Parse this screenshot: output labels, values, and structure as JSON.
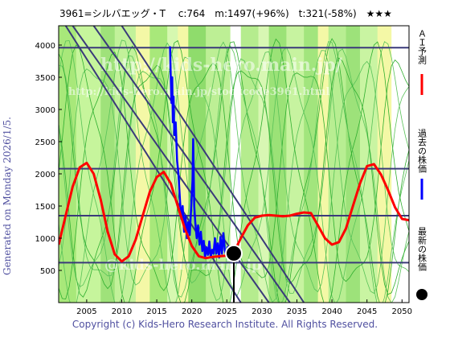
{
  "title": "3961=シルバエッグ・T　 c:764　m:1497(+96%)　t:321(-58%)　★★★",
  "side_label": "Generated on Monday 2026/1/5.",
  "footer": "Copyright (c) Kids-Hero Research Institute. All Rights Reserved.",
  "watermarks": [
    "http://kids-hero.main.jp/",
    "http://kids-hero.main.jp/stockcode3961.html",
    "@kids-hero.main.jp"
  ],
  "legend": [
    {
      "label": "ＡＩ予測",
      "color": "#ff0000",
      "marker": "line"
    },
    {
      "label": "過去の株価",
      "color": "#0000ff",
      "marker": "line"
    },
    {
      "label": "最新の株価",
      "color": "#000000",
      "marker": "dot"
    }
  ],
  "chart_data": {
    "type": "line",
    "xlim": [
      2001,
      2051
    ],
    "ylim": [
      0,
      4300
    ],
    "xticks": [
      2005,
      2010,
      2015,
      2020,
      2025,
      2030,
      2035,
      2040,
      2045,
      2050
    ],
    "yticks": [
      500,
      1000,
      1500,
      2000,
      2500,
      3000,
      3500,
      4000
    ],
    "grid": false,
    "legend_position": "right, vertical",
    "hlines": [
      3960,
      2080,
      1350,
      620
    ],
    "vline": 2026,
    "latest_price": {
      "x": 2026.0,
      "y": 764
    },
    "series": [
      {
        "name": "過去の株価",
        "color": "#0000ff",
        "points": [
          [
            2016.9,
            3980
          ],
          [
            2017.0,
            3500
          ],
          [
            2017.1,
            3100
          ],
          [
            2017.2,
            3500
          ],
          [
            2017.3,
            2800
          ],
          [
            2017.4,
            3200
          ],
          [
            2017.5,
            2600
          ],
          [
            2017.7,
            2800
          ],
          [
            2017.9,
            2200
          ],
          [
            2018.1,
            2000
          ],
          [
            2018.3,
            1600
          ],
          [
            2018.5,
            1300
          ],
          [
            2018.7,
            1500
          ],
          [
            2018.9,
            1100
          ],
          [
            2019.1,
            1350
          ],
          [
            2019.3,
            1000
          ],
          [
            2019.5,
            1250
          ],
          [
            2019.7,
            1050
          ],
          [
            2019.9,
            1450
          ],
          [
            2020.1,
            1900
          ],
          [
            2020.2,
            2540
          ],
          [
            2020.35,
            1500
          ],
          [
            2020.5,
            1250
          ],
          [
            2020.7,
            1000
          ],
          [
            2020.9,
            1200
          ],
          [
            2021.1,
            900
          ],
          [
            2021.3,
            1100
          ],
          [
            2021.5,
            800
          ],
          [
            2021.7,
            960
          ],
          [
            2021.9,
            700
          ],
          [
            2022.1,
            860
          ],
          [
            2022.3,
            740
          ],
          [
            2022.5,
            950
          ],
          [
            2022.7,
            700
          ],
          [
            2022.9,
            820
          ],
          [
            2023.1,
            760
          ],
          [
            2023.3,
            1000
          ],
          [
            2023.5,
            760
          ],
          [
            2023.7,
            920
          ],
          [
            2023.9,
            700
          ],
          [
            2024.1,
            1020
          ],
          [
            2024.3,
            760
          ],
          [
            2024.5,
            1080
          ],
          [
            2024.7,
            820
          ],
          [
            2024.9,
            740
          ],
          [
            2025.1,
            860
          ],
          [
            2025.4,
            760
          ],
          [
            2025.8,
            764
          ]
        ]
      },
      {
        "name": "ＡＩ予測",
        "color": "#ff0000",
        "points": [
          [
            2001,
            900
          ],
          [
            2002,
            1350
          ],
          [
            2003,
            1800
          ],
          [
            2004,
            2100
          ],
          [
            2005,
            2170
          ],
          [
            2006,
            2000
          ],
          [
            2007,
            1600
          ],
          [
            2008,
            1100
          ],
          [
            2009,
            750
          ],
          [
            2010,
            640
          ],
          [
            2011,
            720
          ],
          [
            2012,
            980
          ],
          [
            2013,
            1350
          ],
          [
            2014,
            1720
          ],
          [
            2015,
            1950
          ],
          [
            2016,
            2030
          ],
          [
            2017,
            1850
          ],
          [
            2018,
            1500
          ],
          [
            2019,
            1150
          ],
          [
            2020,
            880
          ],
          [
            2021,
            720
          ],
          [
            2022,
            690
          ],
          [
            2023,
            710
          ],
          [
            2024,
            720
          ],
          [
            2025,
            730
          ],
          [
            2026,
            780
          ],
          [
            2027,
            1000
          ],
          [
            2028,
            1200
          ],
          [
            2029,
            1320
          ],
          [
            2030,
            1350
          ],
          [
            2031,
            1360
          ],
          [
            2032,
            1350
          ],
          [
            2033,
            1340
          ],
          [
            2034,
            1350
          ],
          [
            2035,
            1380
          ],
          [
            2036,
            1400
          ],
          [
            2037,
            1390
          ],
          [
            2038,
            1200
          ],
          [
            2039,
            1000
          ],
          [
            2040,
            900
          ],
          [
            2041,
            940
          ],
          [
            2042,
            1150
          ],
          [
            2043,
            1500
          ],
          [
            2044,
            1850
          ],
          [
            2045,
            2120
          ],
          [
            2046,
            2150
          ],
          [
            2047,
            1990
          ],
          [
            2048,
            1750
          ],
          [
            2049,
            1480
          ],
          [
            2050,
            1300
          ],
          [
            2051,
            1280
          ]
        ]
      }
    ]
  }
}
